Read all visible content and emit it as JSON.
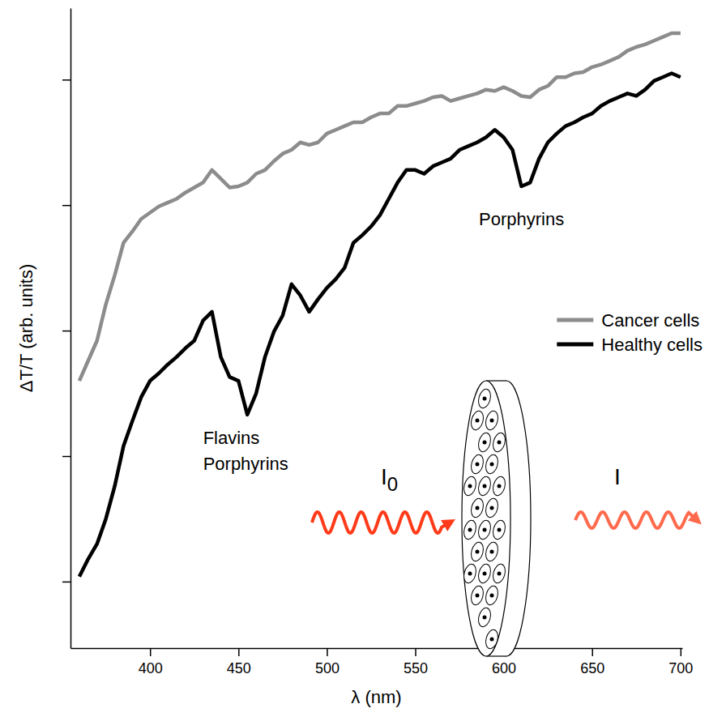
{
  "chart_data": {
    "type": "line",
    "x_label": "λ (nm)",
    "y_label": "ΔT/T (arb. units)",
    "x": [
      360,
      365,
      370,
      375,
      380,
      385,
      390,
      395,
      400,
      405,
      410,
      415,
      420,
      425,
      430,
      435,
      440,
      445,
      450,
      455,
      460,
      465,
      470,
      475,
      480,
      485,
      490,
      495,
      500,
      505,
      510,
      515,
      520,
      525,
      530,
      535,
      540,
      545,
      550,
      555,
      560,
      565,
      570,
      575,
      580,
      585,
      590,
      595,
      600,
      605,
      610,
      615,
      620,
      625,
      630,
      635,
      640,
      645,
      650,
      655,
      660,
      665,
      670,
      675,
      680,
      685,
      690,
      695,
      700
    ],
    "series": [
      {
        "name": "Cancer cells",
        "color": "#8c8c8c",
        "values": [
          1.6,
          1.76,
          1.92,
          2.21,
          2.44,
          2.7,
          2.79,
          2.89,
          2.94,
          2.99,
          3.02,
          3.05,
          3.1,
          3.14,
          3.18,
          3.28,
          3.21,
          3.14,
          3.15,
          3.18,
          3.25,
          3.28,
          3.35,
          3.41,
          3.44,
          3.5,
          3.48,
          3.5,
          3.57,
          3.6,
          3.63,
          3.66,
          3.66,
          3.7,
          3.73,
          3.73,
          3.79,
          3.79,
          3.81,
          3.83,
          3.86,
          3.87,
          3.83,
          3.85,
          3.87,
          3.89,
          3.92,
          3.91,
          3.94,
          3.91,
          3.87,
          3.86,
          3.92,
          3.95,
          4.02,
          4.02,
          4.05,
          4.06,
          4.1,
          4.12,
          4.15,
          4.18,
          4.23,
          4.26,
          4.28,
          4.31,
          4.34,
          4.37,
          4.37
        ]
      },
      {
        "name": "Healthy cells",
        "color": "#000000",
        "values": [
          0.04,
          0.18,
          0.3,
          0.5,
          0.76,
          1.08,
          1.28,
          1.47,
          1.6,
          1.66,
          1.73,
          1.79,
          1.86,
          1.92,
          2.08,
          2.15,
          1.79,
          1.63,
          1.6,
          1.33,
          1.5,
          1.79,
          1.99,
          2.12,
          2.37,
          2.28,
          2.15,
          2.25,
          2.34,
          2.41,
          2.5,
          2.7,
          2.76,
          2.83,
          2.92,
          3.05,
          3.18,
          3.28,
          3.28,
          3.25,
          3.31,
          3.34,
          3.37,
          3.44,
          3.47,
          3.5,
          3.54,
          3.6,
          3.54,
          3.44,
          3.15,
          3.18,
          3.37,
          3.5,
          3.57,
          3.63,
          3.66,
          3.7,
          3.73,
          3.79,
          3.83,
          3.86,
          3.89,
          3.87,
          3.92,
          3.99,
          4.02,
          4.05,
          4.02
        ]
      }
    ],
    "xlim": [
      355,
      701
    ],
    "ylim": [
      -0.53,
      4.57
    ],
    "xticks": [
      400,
      450,
      500,
      550,
      600,
      650,
      700
    ],
    "yticks": [
      0,
      1,
      2,
      3,
      4
    ],
    "tick_labels": "x",
    "grid": false,
    "legend": "right",
    "annotations": [
      {
        "text": "Flavins",
        "x": 430,
        "y": 1.1
      },
      {
        "text": "Porphyrins",
        "x": 430,
        "y": 0.89
      },
      {
        "text": "Porphyrins",
        "x": 586,
        "y": 2.84
      }
    ],
    "inset": {
      "incident_label": "I0",
      "transmitted_label": "I"
    }
  }
}
